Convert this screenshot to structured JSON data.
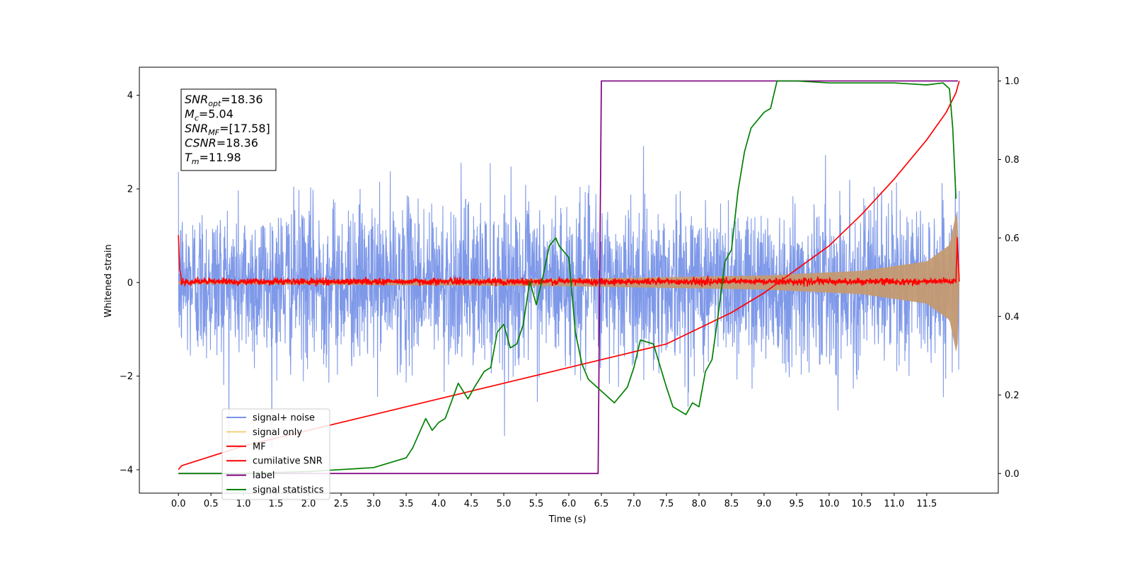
{
  "chart_data": {
    "type": "line",
    "xlabel": "Time (s)",
    "ylabel": "Whitened strain",
    "xlim": [
      -0.6,
      12.6
    ],
    "ylim": [
      -4.5,
      4.6
    ],
    "y2lim": [
      -0.05,
      1.035
    ],
    "xticks": [
      "0.0",
      "0.5",
      "1.0",
      "1.5",
      "2.0",
      "2.5",
      "3.0",
      "3.5",
      "4.0",
      "4.5",
      "5.0",
      "5.5",
      "6.0",
      "6.5",
      "7.0",
      "7.5",
      "8.0",
      "8.5",
      "9.0",
      "9.5",
      "10.0",
      "10.5",
      "11.0",
      "11.5"
    ],
    "yticks": [
      "4",
      "2",
      "0",
      "−2",
      "−4"
    ],
    "y2ticks": [
      "1.0",
      "0.8",
      "0.6",
      "0.4",
      "0.2",
      "0.0"
    ],
    "annotations": [
      {
        "name": "SNR",
        "sub": "opt",
        "value": "=18.36"
      },
      {
        "name": "M",
        "sub": "c",
        "value": "=5.04"
      },
      {
        "name": "SNR",
        "sub": "MF",
        "value": "=[17.58]"
      },
      {
        "name": "CSNR",
        "sub": "",
        "value": "=18.36"
      },
      {
        "name": "T",
        "sub": "m",
        "value": "=11.98"
      }
    ],
    "legend_position": "lower-left",
    "series": [
      {
        "name": "signal+ noise",
        "color": "#7893e8",
        "axis": "left",
        "kind": "noise",
        "amplitude_sd": 0.85,
        "range": [
          0,
          12.0
        ]
      },
      {
        "name": "signal only",
        "color": "#c49a72",
        "legend_color": "#f5cf7a",
        "axis": "left",
        "kind": "chirp_envelope",
        "envelope": [
          [
            0,
            0.03
          ],
          [
            6.0,
            0.08
          ],
          [
            9.0,
            0.15
          ],
          [
            10.5,
            0.25
          ],
          [
            11.5,
            0.45
          ],
          [
            11.85,
            0.8
          ],
          [
            11.97,
            1.6
          ],
          [
            12.0,
            0.1
          ]
        ]
      },
      {
        "name": "MF",
        "color": "#ff0000",
        "axis": "left",
        "kind": "matched_filter",
        "x": [
          0,
          0.02,
          0.05,
          11.95,
          11.97,
          12.0
        ],
        "y": [
          1.0,
          0.3,
          0.02,
          0.02,
          0.9,
          0.0
        ]
      },
      {
        "name": "cumilative SNR",
        "color": "#ff0000",
        "axis": "right",
        "x": [
          0,
          0.05,
          1,
          2,
          3,
          4,
          5,
          6,
          7,
          7.5,
          8,
          8.5,
          9,
          9.5,
          10,
          10.5,
          11,
          11.5,
          11.8,
          11.95,
          12.0
        ],
        "y": [
          0.01,
          0.02,
          0.07,
          0.11,
          0.15,
          0.19,
          0.23,
          0.27,
          0.31,
          0.33,
          0.37,
          0.41,
          0.46,
          0.52,
          0.58,
          0.66,
          0.75,
          0.85,
          0.92,
          0.97,
          1.0
        ]
      },
      {
        "name": "label",
        "color": "#800080",
        "axis": "right",
        "x": [
          0,
          6.45,
          6.5,
          11.98
        ],
        "y": [
          0.0,
          0.0,
          1.0,
          1.0
        ]
      },
      {
        "name": "signal statistics",
        "color": "#008000",
        "axis": "right",
        "x": [
          0,
          1.0,
          2.0,
          2.5,
          3.0,
          3.5,
          3.6,
          3.8,
          3.9,
          4.0,
          4.1,
          4.3,
          4.45,
          4.55,
          4.7,
          4.8,
          4.9,
          5.0,
          5.1,
          5.2,
          5.3,
          5.4,
          5.5,
          5.6,
          5.7,
          5.8,
          5.85,
          5.9,
          6.0,
          6.1,
          6.2,
          6.3,
          6.5,
          6.7,
          6.9,
          7.0,
          7.1,
          7.3,
          7.5,
          7.6,
          7.8,
          7.9,
          8.0,
          8.1,
          8.2,
          8.3,
          8.4,
          8.5,
          8.6,
          8.7,
          8.8,
          9.0,
          9.1,
          9.2,
          9.5,
          10.0,
          10.5,
          11.0,
          11.5,
          11.75,
          11.85,
          11.9,
          11.95
        ],
        "y": [
          0.0,
          0.0,
          0.005,
          0.01,
          0.015,
          0.04,
          0.065,
          0.14,
          0.11,
          0.13,
          0.14,
          0.23,
          0.19,
          0.22,
          0.26,
          0.27,
          0.36,
          0.38,
          0.32,
          0.33,
          0.38,
          0.49,
          0.43,
          0.5,
          0.58,
          0.6,
          0.58,
          0.57,
          0.55,
          0.36,
          0.28,
          0.24,
          0.21,
          0.18,
          0.22,
          0.27,
          0.34,
          0.33,
          0.22,
          0.17,
          0.15,
          0.18,
          0.17,
          0.26,
          0.29,
          0.41,
          0.54,
          0.57,
          0.72,
          0.82,
          0.88,
          0.92,
          0.93,
          1.0,
          1.0,
          0.995,
          0.995,
          0.995,
          0.99,
          0.995,
          0.98,
          0.88,
          0.7
        ]
      }
    ]
  }
}
